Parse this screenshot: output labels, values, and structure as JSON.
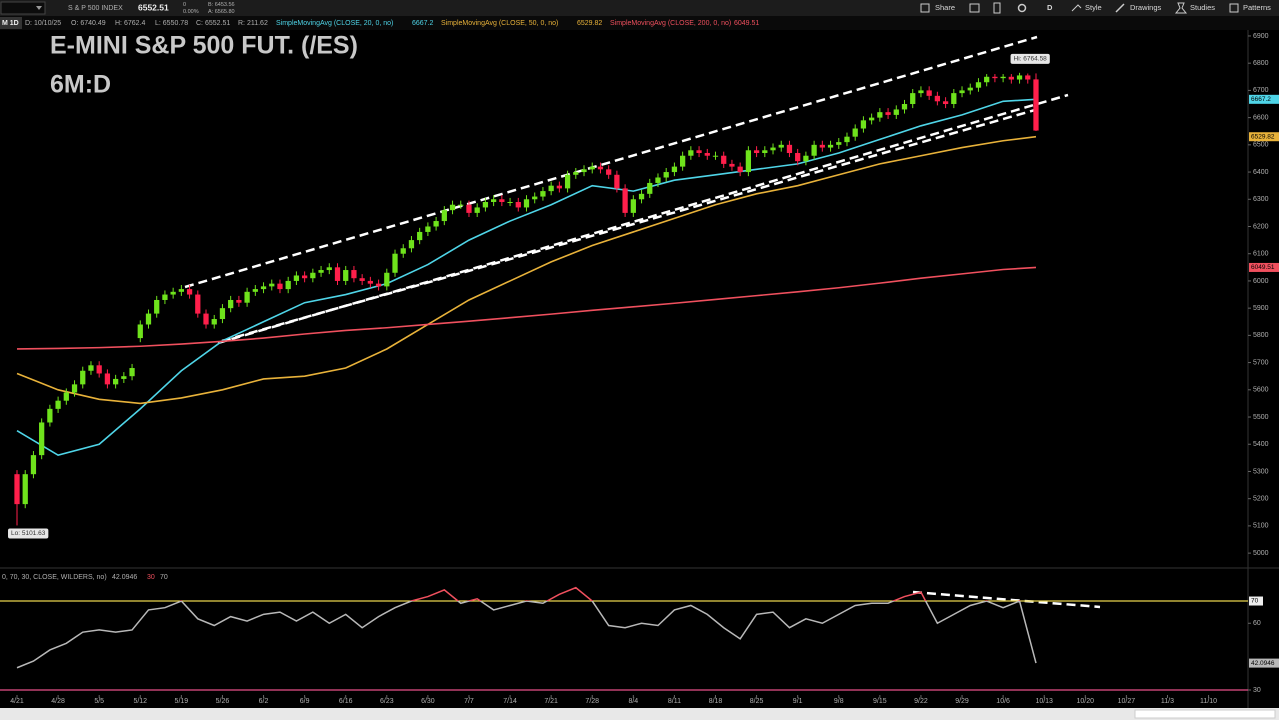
{
  "toolbar": {
    "symbol_name": "S & P 500 INDEX",
    "last": "6552.51",
    "change": "0",
    "change_pct": "0.00%",
    "bid": "B: 6453.56",
    "ask": "A: 6565.80",
    "buttons": [
      "Share",
      "D",
      "Style",
      "Drawings",
      "Studies",
      "Patterns"
    ]
  },
  "status": {
    "interval": "M 1D",
    "date": "D: 10/10/25",
    "open": "O: 6740.49",
    "high": "H: 6762.4",
    "low": "L: 6550.78",
    "close": "C: 6552.51",
    "range": "R: 211.62"
  },
  "chart_data": [
    {
      "type": "candlestick",
      "title": "E-MINI S&P 500 FUT. (/ES)",
      "subtitle": "6M:D",
      "open": [
        5290,
        5180,
        5290,
        5360,
        5480,
        5530,
        5560,
        5590,
        5620,
        5670,
        5690,
        5660,
        5620,
        5640,
        5650,
        5790,
        5840,
        5880,
        5930,
        5950,
        5960,
        5970,
        5950,
        5880,
        5840,
        5860,
        5900,
        5930,
        5920,
        5960,
        5970,
        5980,
        5990,
        5970,
        6000,
        6020,
        6010,
        6030,
        6040,
        6050,
        6000,
        6040,
        6010,
        6000,
        5990,
        5980,
        6030,
        6100,
        6120,
        6150,
        6180,
        6200,
        6220,
        6260,
        6280,
        6280,
        6250,
        6270,
        6290,
        6300,
        6290,
        6290,
        6270,
        6300,
        6310,
        6330,
        6350,
        6340,
        6390,
        6400,
        6410,
        6420,
        6410,
        6390,
        6340,
        6250,
        6300,
        6320,
        6360,
        6380,
        6400,
        6420,
        6460,
        6480,
        6470,
        6460,
        6460,
        6430,
        6420,
        6400,
        6480,
        6470,
        6480,
        6490,
        6500,
        6470,
        6440,
        6460,
        6500,
        6490,
        6500,
        6510,
        6530,
        6560,
        6590,
        6600,
        6620,
        6610,
        6630,
        6650,
        6690,
        6700,
        6680,
        6660,
        6650,
        6690,
        6700,
        6710,
        6730,
        6750,
        6745,
        6750,
        6740,
        6755,
        6740.49
      ],
      "high": [
        5305,
        5305,
        5375,
        5495,
        5545,
        5575,
        5605,
        5635,
        5685,
        5705,
        5705,
        5675,
        5655,
        5665,
        5695,
        5855,
        5895,
        5945,
        5965,
        5975,
        5985,
        5985,
        5965,
        5895,
        5875,
        5915,
        5945,
        5945,
        5975,
        5985,
        5995,
        6005,
        6005,
        6015,
        6035,
        6035,
        6045,
        6055,
        6065,
        6065,
        6055,
        6055,
        6025,
        6015,
        6005,
        6045,
        6115,
        6135,
        6165,
        6195,
        6215,
        6235,
        6275,
        6295,
        6295,
        6295,
        6285,
        6305,
        6315,
        6315,
        6305,
        6305,
        6315,
        6325,
        6345,
        6365,
        6365,
        6405,
        6415,
        6425,
        6435,
        6435,
        6425,
        6405,
        6355,
        6315,
        6335,
        6375,
        6395,
        6415,
        6435,
        6475,
        6495,
        6495,
        6485,
        6475,
        6475,
        6445,
        6435,
        6495,
        6495,
        6495,
        6505,
        6515,
        6515,
        6485,
        6475,
        6515,
        6515,
        6515,
        6525,
        6545,
        6575,
        6605,
        6615,
        6635,
        6635,
        6645,
        6665,
        6705,
        6715,
        6715,
        6695,
        6675,
        6705,
        6715,
        6725,
        6745,
        6760,
        6760,
        6760,
        6760,
        6764.58,
        6762,
        6762.4
      ],
      "low": [
        5101.63,
        5165,
        5275,
        5345,
        5465,
        5515,
        5545,
        5575,
        5605,
        5655,
        5645,
        5605,
        5605,
        5625,
        5635,
        5775,
        5825,
        5865,
        5915,
        5935,
        5945,
        5935,
        5865,
        5825,
        5825,
        5845,
        5885,
        5905,
        5905,
        5945,
        5955,
        5965,
        5955,
        5955,
        5985,
        5995,
        5995,
        6015,
        6025,
        5985,
        5985,
        5995,
        5985,
        5975,
        5965,
        5965,
        6015,
        6085,
        6105,
        6135,
        6165,
        6185,
        6205,
        6245,
        6265,
        6235,
        6235,
        6255,
        6275,
        6275,
        6275,
        6255,
        6255,
        6285,
        6295,
        6315,
        6325,
        6325,
        6375,
        6385,
        6395,
        6395,
        6375,
        6325,
        6235,
        6235,
        6285,
        6305,
        6345,
        6365,
        6385,
        6405,
        6445,
        6455,
        6445,
        6445,
        6415,
        6405,
        6385,
        6385,
        6455,
        6455,
        6465,
        6475,
        6455,
        6425,
        6425,
        6445,
        6475,
        6475,
        6485,
        6495,
        6515,
        6545,
        6575,
        6585,
        6595,
        6595,
        6615,
        6635,
        6675,
        6665,
        6645,
        6635,
        6635,
        6675,
        6685,
        6695,
        6715,
        6730,
        6730,
        6725,
        6725,
        6725,
        6550.78
      ],
      "close": [
        5180,
        5290,
        5360,
        5480,
        5530,
        5560,
        5590,
        5620,
        5670,
        5690,
        5660,
        5620,
        5640,
        5650,
        5680,
        5840,
        5880,
        5930,
        5950,
        5960,
        5970,
        5950,
        5880,
        5840,
        5860,
        5900,
        5930,
        5920,
        5960,
        5970,
        5980,
        5990,
        5970,
        6000,
        6020,
        6010,
        6030,
        6040,
        6050,
        6000,
        6040,
        6010,
        6000,
        5990,
        5980,
        6030,
        6100,
        6120,
        6150,
        6180,
        6200,
        6220,
        6260,
        6280,
        6280,
        6250,
        6270,
        6290,
        6300,
        6290,
        6290,
        6270,
        6300,
        6310,
        6330,
        6350,
        6340,
        6390,
        6400,
        6410,
        6420,
        6410,
        6390,
        6340,
        6250,
        6300,
        6320,
        6360,
        6380,
        6400,
        6420,
        6460,
        6480,
        6470,
        6460,
        6460,
        6430,
        6420,
        6400,
        6480,
        6470,
        6480,
        6490,
        6500,
        6470,
        6440,
        6460,
        6500,
        6490,
        6500,
        6510,
        6530,
        6560,
        6590,
        6600,
        6620,
        6610,
        6630,
        6650,
        6690,
        6700,
        6680,
        6660,
        6650,
        6690,
        6700,
        6710,
        6730,
        6750,
        6745,
        6750,
        6740,
        6755,
        6740,
        6552.51
      ],
      "up_color": "#6fe31c",
      "down_color": "#ff1f4b",
      "series": [
        {
          "name": "SimpleMovingAvg (CLOSE, 20, 0, no)",
          "color": "#4fd5e8",
          "x": [
            0,
            5,
            10,
            15,
            20,
            25,
            30,
            35,
            40,
            45,
            50,
            55,
            60,
            65,
            70,
            75,
            80,
            85,
            90,
            95,
            100,
            105,
            110,
            115,
            120,
            124
          ],
          "values": [
            5450,
            5360,
            5400,
            5530,
            5670,
            5780,
            5850,
            5920,
            5950,
            5990,
            6060,
            6150,
            6220,
            6280,
            6350,
            6330,
            6370,
            6390,
            6410,
            6430,
            6470,
            6520,
            6570,
            6610,
            6660,
            6667.2
          ]
        },
        {
          "name": "SimpleMovingAvg (CLOSE, 50, 0, no)",
          "color": "#e8b23a",
          "x": [
            0,
            5,
            10,
            15,
            20,
            25,
            30,
            35,
            40,
            45,
            50,
            55,
            60,
            65,
            70,
            75,
            80,
            85,
            90,
            95,
            100,
            105,
            110,
            115,
            120,
            124
          ],
          "values": [
            5660,
            5600,
            5565,
            5550,
            5570,
            5600,
            5640,
            5650,
            5680,
            5750,
            5840,
            5930,
            6000,
            6070,
            6130,
            6180,
            6230,
            6280,
            6320,
            6350,
            6390,
            6430,
            6460,
            6490,
            6515,
            6529.82
          ]
        },
        {
          "name": "SimpleMovingAvg (CLOSE, 200, 0, no)",
          "color": "#f0505e",
          "x": [
            0,
            5,
            10,
            15,
            20,
            25,
            30,
            35,
            40,
            45,
            50,
            55,
            60,
            65,
            70,
            75,
            80,
            85,
            90,
            95,
            100,
            105,
            110,
            115,
            120,
            124
          ],
          "values": [
            5750,
            5752,
            5755,
            5760,
            5768,
            5778,
            5790,
            5805,
            5818,
            5828,
            5840,
            5852,
            5865,
            5878,
            5892,
            5905,
            5918,
            5932,
            5946,
            5960,
            5975,
            5992,
            6010,
            6026,
            6042,
            6049.51
          ]
        }
      ],
      "annotations": [
        {
          "text": "Hi: 6764.58"
        },
        {
          "text": "Lo: 5101.63"
        }
      ],
      "xlim": [
        -2.07,
        149.8
      ],
      "ylim": [
        4949,
        6966
      ],
      "yticks": [
        5000,
        5100,
        5200,
        5300,
        5400,
        5500,
        5600,
        5700,
        5800,
        5900,
        6000,
        6100,
        6200,
        6300,
        6400,
        6500,
        6600,
        6700,
        6800,
        6900
      ],
      "grid": false
    },
    {
      "type": "line",
      "series": [
        {
          "name": "0, 70, 30, CLOSE, WILDERS, no)",
          "color": "#b8b8b8",
          "x": [
            0,
            2,
            4,
            6,
            8,
            10,
            12,
            14,
            16,
            18,
            20,
            22,
            24,
            26,
            28,
            30,
            32,
            34,
            36,
            38,
            40,
            42,
            44,
            46,
            48,
            50,
            52,
            54,
            56,
            58,
            60,
            62,
            64,
            66,
            68,
            70,
            72,
            74,
            76,
            78,
            80,
            82,
            84,
            86,
            88,
            90,
            92,
            94,
            96,
            98,
            100,
            102,
            104,
            106,
            108,
            110,
            112,
            114,
            116,
            118,
            120,
            122,
            124
          ],
          "values": [
            40,
            43,
            48,
            51,
            56,
            57,
            56,
            57,
            66,
            67,
            70,
            62,
            59,
            63,
            61,
            64,
            65,
            61,
            65,
            60,
            64,
            58,
            63,
            67,
            70,
            72,
            75,
            69,
            71,
            66,
            68,
            70,
            69,
            73,
            76,
            70,
            59,
            58,
            60,
            59,
            66,
            68,
            64,
            58,
            53,
            64,
            65,
            58,
            62,
            60,
            64,
            68,
            69,
            69,
            72,
            74,
            60,
            64,
            68,
            70,
            67,
            70,
            42.0946
          ]
        }
      ],
      "overbought": 70,
      "oversold": 30,
      "overbought_color": "#f0505e",
      "overbought_line_color": "#e8d44d",
      "oversold_line_color": "#e8508a",
      "xlim": [
        -2.07,
        149.8
      ],
      "ylim": [
        27.75,
        78.1
      ],
      "yticks": [
        30,
        60
      ],
      "xticks": [
        {
          "value": 0,
          "label": "4/21"
        },
        {
          "value": 5,
          "label": "4/28"
        },
        {
          "value": 10,
          "label": "5/5"
        },
        {
          "value": 15,
          "label": "5/12"
        },
        {
          "value": 20,
          "label": "5/19"
        },
        {
          "value": 25,
          "label": "5/26"
        },
        {
          "value": 30,
          "label": "6/2"
        },
        {
          "value": 35,
          "label": "6/9"
        },
        {
          "value": 40,
          "label": "6/16"
        },
        {
          "value": 45,
          "label": "6/23"
        },
        {
          "value": 50,
          "label": "6/30"
        },
        {
          "value": 55,
          "label": "7/7"
        },
        {
          "value": 60,
          "label": "7/14"
        },
        {
          "value": 65,
          "label": "7/21"
        },
        {
          "value": 70,
          "label": "7/28"
        },
        {
          "value": 75,
          "label": "8/4"
        },
        {
          "value": 80,
          "label": "8/11"
        },
        {
          "value": 85,
          "label": "8/18"
        },
        {
          "value": 90,
          "label": "8/25"
        },
        {
          "value": 95,
          "label": "9/1"
        },
        {
          "value": 100,
          "label": "9/8"
        },
        {
          "value": 105,
          "label": "9/15"
        },
        {
          "value": 110,
          "label": "9/22"
        },
        {
          "value": 115,
          "label": "9/29"
        },
        {
          "value": 120,
          "label": "10/6"
        },
        {
          "value": 125,
          "label": "10/13"
        },
        {
          "value": 130,
          "label": "10/20"
        },
        {
          "value": 135,
          "label": "10/27"
        },
        {
          "value": 140,
          "label": "11/3"
        },
        {
          "value": 145,
          "label": "11/10"
        }
      ],
      "grid": false
    }
  ]
}
